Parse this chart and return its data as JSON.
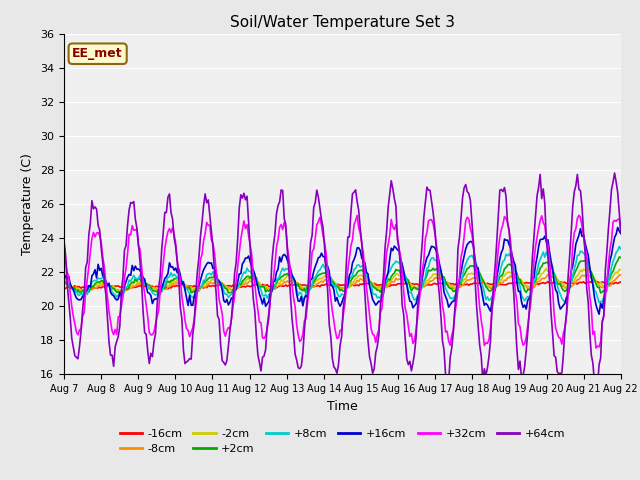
{
  "title": "Soil/Water Temperature Set 3",
  "xlabel": "Time",
  "ylabel": "Temperature (C)",
  "annotation": "EE_met",
  "annotation_color": "#8B0000",
  "annotation_bg": "#FFFACD",
  "annotation_edge": "#8B6914",
  "ylim": [
    16,
    36
  ],
  "yticks": [
    16,
    18,
    20,
    22,
    24,
    26,
    28,
    30,
    32,
    34,
    36
  ],
  "bg_color": "#E8E8E8",
  "plot_bg": "#F0F0F0",
  "series": [
    {
      "label": "-16cm",
      "color": "#FF0000",
      "lw": 1.2
    },
    {
      "label": "-8cm",
      "color": "#FF8C00",
      "lw": 1.2
    },
    {
      "label": "-2cm",
      "color": "#CCCC00",
      "lw": 1.2
    },
    {
      "label": "+2cm",
      "color": "#00AA00",
      "lw": 1.2
    },
    {
      "label": "+8cm",
      "color": "#00CCCC",
      "lw": 1.2
    },
    {
      "label": "+16cm",
      "color": "#0000CC",
      "lw": 1.2
    },
    {
      "label": "+32cm",
      "color": "#FF00FF",
      "lw": 1.2
    },
    {
      "label": "+64cm",
      "color": "#8800BB",
      "lw": 1.2
    }
  ],
  "x_start": 0,
  "x_end": 15,
  "n_points": 360,
  "xtick_labels": [
    "Aug 7",
    "Aug 8",
    "Aug 9",
    "Aug 10",
    "Aug 11",
    "Aug 12",
    "Aug 13",
    "Aug 14",
    "Aug 15",
    "Aug 16",
    "Aug 17",
    "Aug 18",
    "Aug 19",
    "Aug 20",
    "Aug 21",
    "Aug 22"
  ],
  "xtick_positions": [
    0,
    1,
    2,
    3,
    4,
    5,
    6,
    7,
    8,
    9,
    10,
    11,
    12,
    13,
    14,
    15
  ],
  "legend_ncol_row1": 6,
  "figsize": [
    6.4,
    4.8
  ],
  "dpi": 100
}
